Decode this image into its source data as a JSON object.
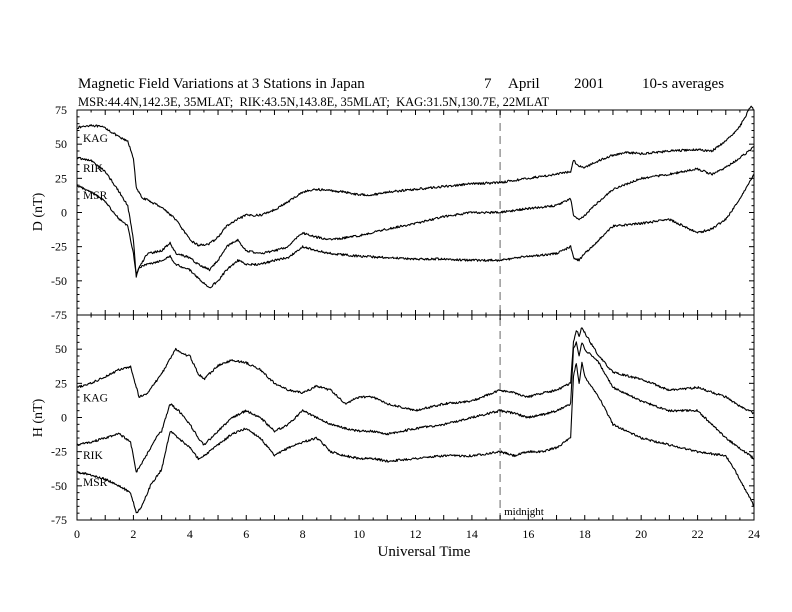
{
  "header": {
    "title_parts": [
      "Magnetic Field Variations at 3 Stations in Japan",
      "7",
      "April",
      "2001",
      "10-s averages"
    ],
    "subtitle": "MSR:44.4N,142.3E, 35MLAT;  RIK:43.5N,143.8E, 35MLAT;  KAG:31.5N,130.7E, 22MLAT"
  },
  "chart_data": [
    {
      "type": "line",
      "panel": "top",
      "ylabel": "D (nT)",
      "ylim": [
        -75,
        75
      ],
      "yticks": [
        "75",
        "50",
        "25",
        "0",
        "-25",
        "-50",
        "-75"
      ],
      "xlim": [
        0,
        24
      ],
      "series": [
        {
          "name": "KAG",
          "x": [
            0,
            0.5,
            1,
            1.5,
            1.8,
            2.0,
            2.1,
            2.3,
            2.6,
            3.0,
            3.5,
            4.0,
            4.3,
            4.7,
            5.0,
            5.3,
            5.7,
            6.0,
            6.5,
            7.0,
            7.5,
            8.0,
            8.5,
            9.0,
            9.5,
            10.0,
            10.5,
            11.0,
            12.0,
            13.0,
            14.0,
            15.0,
            16.0,
            17.0,
            17.5,
            17.6,
            17.8,
            18.0,
            18.5,
            19.0,
            19.5,
            20.0,
            21.0,
            22.0,
            22.5,
            23.0,
            23.5,
            23.9,
            24.0
          ],
          "y": [
            62,
            64,
            62,
            55,
            52,
            40,
            18,
            11,
            8,
            4,
            -5,
            -20,
            -24,
            -23,
            -18,
            -10,
            -5,
            -2,
            -2,
            2,
            8,
            15,
            17,
            16,
            15,
            13,
            13,
            15,
            17,
            19,
            21,
            22,
            25,
            28,
            30,
            38,
            34,
            33,
            38,
            42,
            44,
            43,
            45,
            46,
            45,
            52,
            63,
            78,
            75
          ]
        },
        {
          "name": "RIK",
          "x": [
            0,
            0.5,
            1,
            1.5,
            1.8,
            2.0,
            2.1,
            2.2,
            2.5,
            3.0,
            3.3,
            3.5,
            4.0,
            4.3,
            4.7,
            5.0,
            5.3,
            5.7,
            6.0,
            6.5,
            7.0,
            7.5,
            7.8,
            8.0,
            8.5,
            9.0,
            10.0,
            11.0,
            12.0,
            13.0,
            14.0,
            15.0,
            16.0,
            17.0,
            17.5,
            17.6,
            17.8,
            18.0,
            18.5,
            19.0,
            20.0,
            21.0,
            22.0,
            22.5,
            23.0,
            23.5,
            24.0
          ],
          "y": [
            40,
            38,
            30,
            15,
            5,
            -20,
            -47,
            -40,
            -30,
            -28,
            -22,
            -30,
            -33,
            -38,
            -42,
            -35,
            -25,
            -20,
            -28,
            -30,
            -28,
            -25,
            -18,
            -15,
            -18,
            -20,
            -17,
            -12,
            -8,
            -3,
            0,
            0,
            3,
            5,
            10,
            -2,
            -5,
            -2,
            8,
            17,
            25,
            28,
            32,
            28,
            33,
            40,
            48
          ]
        },
        {
          "name": "MSR",
          "x": [
            0,
            0.5,
            1,
            1.5,
            1.8,
            2.0,
            2.1,
            2.2,
            2.5,
            3.0,
            3.3,
            3.5,
            4.0,
            4.3,
            4.7,
            5.0,
            5.3,
            5.7,
            6.0,
            6.5,
            7.0,
            7.5,
            7.8,
            8.0,
            8.5,
            9.0,
            10.0,
            11.0,
            12.0,
            13.0,
            14.0,
            15.0,
            16.0,
            17.0,
            17.5,
            17.6,
            17.8,
            18.0,
            18.5,
            19.0,
            20.0,
            21.0,
            21.5,
            22.0,
            22.5,
            23.0,
            23.5,
            24.0
          ],
          "y": [
            20,
            15,
            8,
            -5,
            -10,
            -30,
            -45,
            -40,
            -38,
            -35,
            -32,
            -38,
            -42,
            -48,
            -55,
            -50,
            -42,
            -35,
            -38,
            -38,
            -35,
            -33,
            -28,
            -25,
            -28,
            -30,
            -32,
            -33,
            -34,
            -34,
            -35,
            -35,
            -32,
            -30,
            -25,
            -33,
            -35,
            -30,
            -20,
            -10,
            -8,
            -5,
            -10,
            -15,
            -12,
            -5,
            10,
            28
          ]
        }
      ]
    },
    {
      "type": "line",
      "panel": "bottom",
      "ylabel": "H (nT)",
      "ylim": [
        -75,
        75
      ],
      "yticks": [
        "50",
        "25",
        "0",
        "-25",
        "-50",
        "-75"
      ],
      "xlim": [
        0,
        24
      ],
      "xticks": [
        "0",
        "2",
        "4",
        "6",
        "8",
        "10",
        "12",
        "14",
        "16",
        "18",
        "20",
        "22",
        "24"
      ],
      "xlabel": "Universal Time",
      "series": [
        {
          "name": "KAG",
          "x": [
            0,
            0.5,
            1,
            1.5,
            1.9,
            2.2,
            2.5,
            3.0,
            3.5,
            3.8,
            4.0,
            4.3,
            4.5,
            5.0,
            5.5,
            6.0,
            6.5,
            7.0,
            7.5,
            8.0,
            8.5,
            9.0,
            9.5,
            10.0,
            10.5,
            11.0,
            12.0,
            13.0,
            14.0,
            15.0,
            15.5,
            16.0,
            16.5,
            17.0,
            17.5,
            17.6,
            17.7,
            17.8,
            17.9,
            18.0,
            18.2,
            18.5,
            19.0,
            20.0,
            21.0,
            22.0,
            23.0,
            23.5,
            24.0
          ],
          "y": [
            22,
            25,
            30,
            35,
            37,
            15,
            18,
            32,
            50,
            46,
            45,
            32,
            28,
            38,
            42,
            40,
            35,
            25,
            20,
            18,
            23,
            20,
            10,
            15,
            15,
            10,
            5,
            10,
            12,
            20,
            18,
            15,
            18,
            20,
            25,
            55,
            64,
            60,
            66,
            62,
            55,
            45,
            33,
            28,
            20,
            22,
            15,
            8,
            3
          ]
        },
        {
          "name": "RIK",
          "x": [
            0,
            0.5,
            1,
            1.5,
            1.9,
            2.1,
            2.4,
            2.8,
            3.0,
            3.3,
            3.6,
            4.0,
            4.3,
            4.5,
            5.0,
            5.5,
            6.0,
            6.5,
            7.0,
            7.5,
            8.0,
            8.5,
            9.0,
            9.5,
            10.0,
            10.5,
            11.0,
            12.0,
            13.0,
            14.0,
            15.0,
            15.5,
            16.0,
            16.5,
            17.0,
            17.5,
            17.6,
            17.7,
            17.8,
            17.9,
            18.0,
            18.5,
            19.0,
            20.0,
            21.0,
            22.0,
            23.0,
            24.0
          ],
          "y": [
            -20,
            -18,
            -15,
            -12,
            -18,
            -40,
            -30,
            -15,
            -10,
            10,
            5,
            -5,
            -15,
            -20,
            -10,
            0,
            5,
            0,
            -10,
            -5,
            5,
            0,
            -5,
            -8,
            -10,
            -10,
            -12,
            -8,
            -5,
            0,
            5,
            3,
            0,
            2,
            5,
            10,
            50,
            55,
            45,
            55,
            50,
            40,
            22,
            12,
            5,
            5,
            -15,
            -30
          ]
        },
        {
          "name": "MSR",
          "x": [
            0,
            0.5,
            1,
            1.5,
            1.9,
            2.1,
            2.3,
            2.6,
            3.0,
            3.3,
            3.6,
            4.0,
            4.3,
            4.5,
            5.0,
            5.5,
            6.0,
            6.5,
            7.0,
            7.5,
            8.0,
            8.5,
            9.0,
            9.5,
            10.0,
            10.5,
            11.0,
            12.0,
            13.0,
            14.0,
            15.0,
            15.5,
            16.0,
            16.5,
            17.0,
            17.5,
            17.6,
            17.7,
            17.8,
            17.9,
            18.0,
            18.5,
            19.0,
            20.0,
            21.0,
            22.0,
            23.0,
            23.5,
            24.0
          ],
          "y": [
            -40,
            -42,
            -45,
            -50,
            -55,
            -70,
            -65,
            -50,
            -38,
            -10,
            -15,
            -22,
            -30,
            -28,
            -20,
            -12,
            -8,
            -15,
            -28,
            -22,
            -18,
            -15,
            -25,
            -28,
            -30,
            -30,
            -32,
            -30,
            -28,
            -28,
            -25,
            -28,
            -25,
            -25,
            -22,
            -15,
            30,
            40,
            25,
            40,
            30,
            15,
            -5,
            -15,
            -20,
            -25,
            -28,
            -45,
            -65
          ]
        }
      ]
    }
  ],
  "annotations": {
    "midnight_ut": 15,
    "midnight_label": "midnight",
    "line_color": "#000000",
    "guide_color": "#999999"
  }
}
